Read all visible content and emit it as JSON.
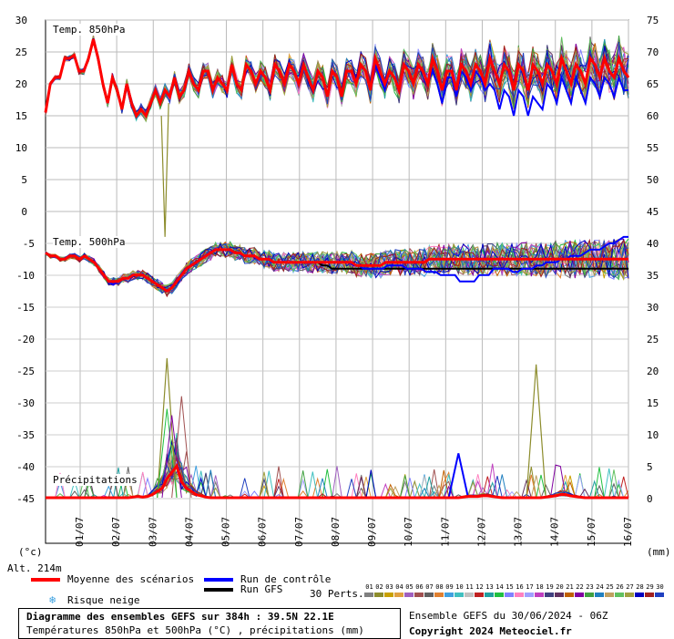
{
  "chart_data": {
    "type": "line",
    "dates": [
      "01/07",
      "02/07",
      "03/07",
      "04/07",
      "05/07",
      "06/07",
      "07/07",
      "08/07",
      "09/07",
      "10/07",
      "11/07",
      "12/07",
      "13/07",
      "14/07",
      "15/07",
      "16/07"
    ],
    "panels": [
      {
        "name": "t850",
        "label": "Temp. 850hPa",
        "left_ticks": [
          "30",
          "25",
          "20",
          "15",
          "10",
          "5",
          "0"
        ],
        "right_ticks": [
          "75",
          "70",
          "65",
          "60",
          "55",
          "50"
        ],
        "ylim": [
          0,
          30
        ],
        "mean": [
          15.5,
          20,
          21,
          21,
          24,
          24,
          24.5,
          22,
          22,
          24,
          27,
          24,
          20,
          17,
          21,
          19,
          16,
          20,
          17,
          15,
          16,
          15,
          17,
          19,
          17,
          19,
          18,
          21,
          18,
          19,
          22,
          20,
          19,
          22,
          22,
          19,
          21,
          20,
          19,
          23,
          20,
          19,
          23,
          22,
          20,
          22,
          21,
          19,
          23,
          22,
          20,
          23,
          22,
          20,
          23,
          21,
          19,
          22,
          21,
          18,
          22,
          21,
          18,
          22,
          22,
          20,
          23,
          22,
          19,
          24,
          22,
          20,
          22,
          21,
          19,
          23,
          22,
          20,
          23,
          22,
          20,
          24,
          22,
          19,
          22,
          22,
          19,
          23,
          22,
          20,
          23,
          22,
          20,
          24,
          22,
          20,
          23,
          22,
          19,
          23,
          22,
          19,
          23,
          22,
          20,
          23,
          22,
          20,
          24,
          22,
          20,
          23,
          22,
          20,
          24,
          23,
          21,
          24,
          22,
          21,
          24,
          22,
          21
        ],
        "control": [
          15.5,
          20,
          21,
          21,
          24,
          24,
          24.5,
          22,
          22,
          24,
          27,
          24,
          20,
          17,
          21,
          19,
          16,
          20,
          17,
          15,
          16,
          15,
          17,
          19,
          17,
          19,
          18,
          21,
          18,
          19,
          22,
          20,
          19,
          22,
          22,
          19,
          21,
          20,
          19,
          23,
          20,
          19,
          23,
          22,
          20,
          22,
          21,
          19,
          23,
          22,
          20,
          23,
          22,
          20,
          23,
          21,
          19,
          22,
          21,
          18,
          22,
          21,
          18,
          22,
          22,
          20,
          23,
          22,
          19,
          23,
          21,
          19,
          22,
          21,
          19,
          23,
          22,
          20,
          23,
          22,
          20,
          22,
          20,
          17,
          21,
          21,
          18,
          22,
          21,
          19,
          22,
          21,
          19,
          20,
          19,
          16,
          19,
          18,
          15,
          19,
          18,
          15,
          18,
          17,
          16,
          20,
          19,
          17,
          21,
          19,
          17,
          21,
          19,
          17,
          21,
          20,
          18,
          21,
          20,
          18,
          21,
          19,
          19
        ],
        "gfs": [
          15.5,
          20,
          21,
          21,
          24,
          24,
          24.5,
          22,
          22,
          24,
          27,
          24,
          20,
          17,
          21,
          19,
          16,
          20,
          17,
          15,
          16,
          15,
          17,
          19,
          17,
          19,
          18,
          21,
          18,
          19,
          22,
          20,
          19,
          22,
          22,
          19,
          21,
          20,
          19,
          23,
          20,
          19,
          23,
          22,
          20,
          22,
          21,
          19,
          23,
          22,
          20,
          23,
          22,
          20,
          23,
          21,
          19,
          22,
          21,
          18,
          22,
          21,
          18,
          22,
          22,
          20,
          23,
          22,
          19,
          24,
          22,
          20,
          22,
          21,
          19,
          23,
          22,
          20,
          23,
          22,
          20,
          24,
          22,
          19,
          22,
          22,
          19,
          23,
          22,
          20,
          23,
          22,
          20,
          24,
          22,
          20,
          23,
          22,
          19,
          23,
          22,
          19,
          23,
          22,
          20,
          23,
          22,
          20,
          24,
          22,
          20,
          23,
          22,
          20,
          24,
          23,
          21,
          24,
          22,
          21,
          24,
          22,
          21
        ]
      },
      {
        "name": "t500",
        "label": "Temp. 500hPa",
        "left_ticks": [
          "-5",
          "-10",
          "-15",
          "-20",
          "-25",
          "-30",
          "-35",
          "-40",
          "-45"
        ],
        "right_ticks": [
          "45",
          "40",
          "35",
          "30",
          "25",
          "20",
          "15",
          "10",
          "5",
          "0"
        ],
        "ylim": [
          -45,
          0
        ],
        "mean": [
          -6.5,
          -7,
          -7,
          -7.5,
          -7.5,
          -7,
          -7,
          -7.5,
          -7,
          -7.5,
          -8,
          -9,
          -10,
          -11,
          -11,
          -11,
          -10.5,
          -10.5,
          -10,
          -10,
          -10,
          -10.5,
          -11,
          -11.5,
          -12,
          -12.5,
          -12,
          -11,
          -10,
          -9,
          -8.5,
          -8,
          -7.5,
          -7,
          -6.5,
          -6,
          -6,
          -6,
          -6,
          -6.5,
          -6.5,
          -7,
          -7,
          -7,
          -7.5,
          -7.5,
          -7.5,
          -8,
          -8,
          -8,
          -8,
          -8,
          -8,
          -8,
          -8,
          -8,
          -8,
          -8,
          -8,
          -8,
          -8,
          -8,
          -8,
          -8,
          -8.5,
          -8.5,
          -8.5,
          -8.5,
          -8.5,
          -8.5,
          -8,
          -8,
          -8,
          -8,
          -8,
          -8,
          -8,
          -8,
          -8,
          -7.5,
          -7.5,
          -7.5,
          -7.5,
          -7.5,
          -7.5,
          -7.5,
          -7.5,
          -7.5,
          -7.5,
          -7.5,
          -7.5,
          -7.5,
          -7.5,
          -7.5,
          -7.5,
          -7.5,
          -7.5,
          -7.5,
          -7.5,
          -7.5,
          -7.5,
          -7.5,
          -7.5,
          -7.5,
          -7.5,
          -7.5,
          -7.5,
          -7.5,
          -7.5,
          -7.5,
          -7.5,
          -7.5,
          -7.5,
          -7.5,
          -7.5,
          -7.5,
          -7.5,
          -7.5,
          -7.5,
          -7.5,
          -7.5
        ],
        "control": [
          -6.5,
          -7,
          -7,
          -7.5,
          -7.5,
          -7,
          -7,
          -7.5,
          -7,
          -7.5,
          -8,
          -9,
          -10,
          -11,
          -11.5,
          -11,
          -10.5,
          -10.5,
          -10,
          -10,
          -10,
          -10.5,
          -11,
          -11.5,
          -12,
          -12.5,
          -12,
          -11,
          -10,
          -9,
          -8.5,
          -8,
          -7.5,
          -7,
          -6.5,
          -6,
          -6,
          -6,
          -6,
          -6.5,
          -6.5,
          -7,
          -7,
          -7,
          -7.5,
          -7.5,
          -7.5,
          -8,
          -8,
          -8,
          -8,
          -8,
          -8,
          -8,
          -8,
          -8,
          -8,
          -8,
          -8,
          -8,
          -8,
          -8,
          -8,
          -8,
          -8.5,
          -8.5,
          -9,
          -9,
          -9,
          -9,
          -9,
          -8.5,
          -8.5,
          -8.5,
          -8.5,
          -9,
          -9,
          -9,
          -9,
          -9.5,
          -9.5,
          -9.5,
          -10,
          -10,
          -10,
          -10,
          -11,
          -11,
          -11,
          -11,
          -10,
          -10,
          -10,
          -9,
          -9,
          -9,
          -9,
          -9.5,
          -9.5,
          -9,
          -9,
          -9,
          -8.5,
          -8.5,
          -8,
          -8,
          -8,
          -7.5,
          -7.5,
          -7,
          -7,
          -7,
          -6.5,
          -6,
          -6,
          -6,
          -5.5,
          -5,
          -5,
          -4.5,
          -4,
          -4
        ],
        "gfs": [
          -6.5,
          -7,
          -7,
          -7.5,
          -7.5,
          -7,
          -7,
          -7.5,
          -7,
          -7.5,
          -8,
          -9,
          -10,
          -11,
          -11,
          -11,
          -10.5,
          -10.5,
          -10,
          -10,
          -10,
          -10.5,
          -11,
          -11.5,
          -12,
          -12.5,
          -12,
          -11,
          -10,
          -9,
          -8.5,
          -8,
          -7.5,
          -7,
          -6.5,
          -6,
          -6,
          -6,
          -6,
          -6.5,
          -6.5,
          -7,
          -7,
          -7,
          -7.5,
          -7.5,
          -7.5,
          -8,
          -8,
          -8,
          -8,
          -8,
          -8,
          -8,
          -8,
          -8,
          -8,
          -8.5,
          -8.5,
          -9,
          -9,
          -9,
          -9,
          -9,
          -9,
          -9,
          -9,
          -9,
          -9,
          -9,
          -9,
          -9,
          -9,
          -9,
          -9,
          -9,
          -9,
          -9,
          -9,
          -9,
          -9,
          -9,
          -9,
          -9,
          -9,
          -9,
          -9,
          -9,
          -9,
          -9,
          -9,
          -9,
          -9,
          -9,
          -9,
          -9,
          -9,
          -9,
          -9,
          -9,
          -9,
          -9,
          -9,
          -9,
          -9,
          -9,
          -9,
          -9,
          -9,
          -9,
          -9,
          -9,
          -9,
          -9,
          -9,
          -9,
          -9,
          -9,
          -9,
          -9,
          -9
        ]
      },
      {
        "name": "precip",
        "label": "Précipitations",
        "right_ticks": [
          "25",
          "20",
          "15",
          "10",
          "5",
          "0"
        ],
        "ylim": [
          0,
          45
        ],
        "mean": [
          0,
          0,
          0,
          0,
          0,
          0,
          0,
          0,
          0,
          0,
          0,
          0,
          0,
          0,
          0,
          0,
          0,
          0,
          0.1,
          0.2,
          0.1,
          0.2,
          0.5,
          1,
          1.5,
          3,
          4,
          5,
          2.5,
          1.5,
          1,
          0.5,
          0.3,
          0.1,
          0,
          0,
          0,
          0,
          0,
          0,
          0,
          0,
          0,
          0,
          0,
          0,
          0,
          0,
          0,
          0,
          0,
          0,
          0,
          0,
          0,
          0,
          0,
          0,
          0,
          0,
          0,
          0,
          0,
          0,
          0,
          0,
          0,
          0,
          0,
          0,
          0,
          0,
          0,
          0,
          0,
          0,
          0,
          0,
          0,
          0,
          0,
          0,
          0,
          0,
          0,
          0,
          0.1,
          0.2,
          0.2,
          0.2,
          0.3,
          0.3,
          0.2,
          0.1,
          0,
          0,
          0,
          0,
          0,
          0,
          0,
          0,
          0,
          0.1,
          0.2,
          0.3,
          0.5,
          0.5,
          0.3,
          0.2,
          0.1,
          0,
          0,
          0,
          0,
          0,
          0,
          0,
          0,
          0,
          0
        ]
      }
    ],
    "x_unit_left": "(°c)",
    "x_unit_right": "(mm)"
  },
  "legend": {
    "altitude": "Alt. 214m",
    "mean_label": "Moyenne des scénarios",
    "control_label": "Run de contrôle",
    "gfs_label": "Run GFS",
    "snow_label": "Risque neige",
    "perts_label": "30 Perts.",
    "member_numbers": [
      "01",
      "02",
      "03",
      "04",
      "05",
      "06",
      "07",
      "08",
      "09",
      "10",
      "11",
      "12",
      "13",
      "14",
      "15",
      "16",
      "17",
      "18",
      "19",
      "20",
      "21",
      "22",
      "23",
      "24",
      "25",
      "26",
      "27",
      "28",
      "29",
      "30"
    ],
    "member_colors": [
      "#808080",
      "#8c8c2c",
      "#c8a000",
      "#e0a040",
      "#a060c0",
      "#a05050",
      "#606060",
      "#e08030",
      "#40a0e0",
      "#40c0c0",
      "#c0c0c0",
      "#c02020",
      "#20a0a0",
      "#20c040",
      "#8080ff",
      "#ff80c0",
      "#a0a0ff",
      "#c040c0",
      "#404080",
      "#603060",
      "#c06000",
      "#8000a0",
      "#40a040",
      "#2080c0",
      "#c0a060",
      "#60c060",
      "#a0a040",
      "#0000c0",
      "#a02020",
      "#2040c0"
    ],
    "colors": {
      "mean": "#ff0000",
      "control": "#0000ff",
      "gfs": "#000000"
    }
  },
  "footer": {
    "title": "Diagramme des ensembles GEFS sur 384h : 39.5N 22.1E",
    "subtitle": "Températures 850hPa et 500hPa (°C) , précipitations (mm)",
    "ensemble_info": "Ensemble GEFS du 30/06/2024 - 06Z",
    "copyright": "Copyright 2024 Meteociel.fr"
  }
}
